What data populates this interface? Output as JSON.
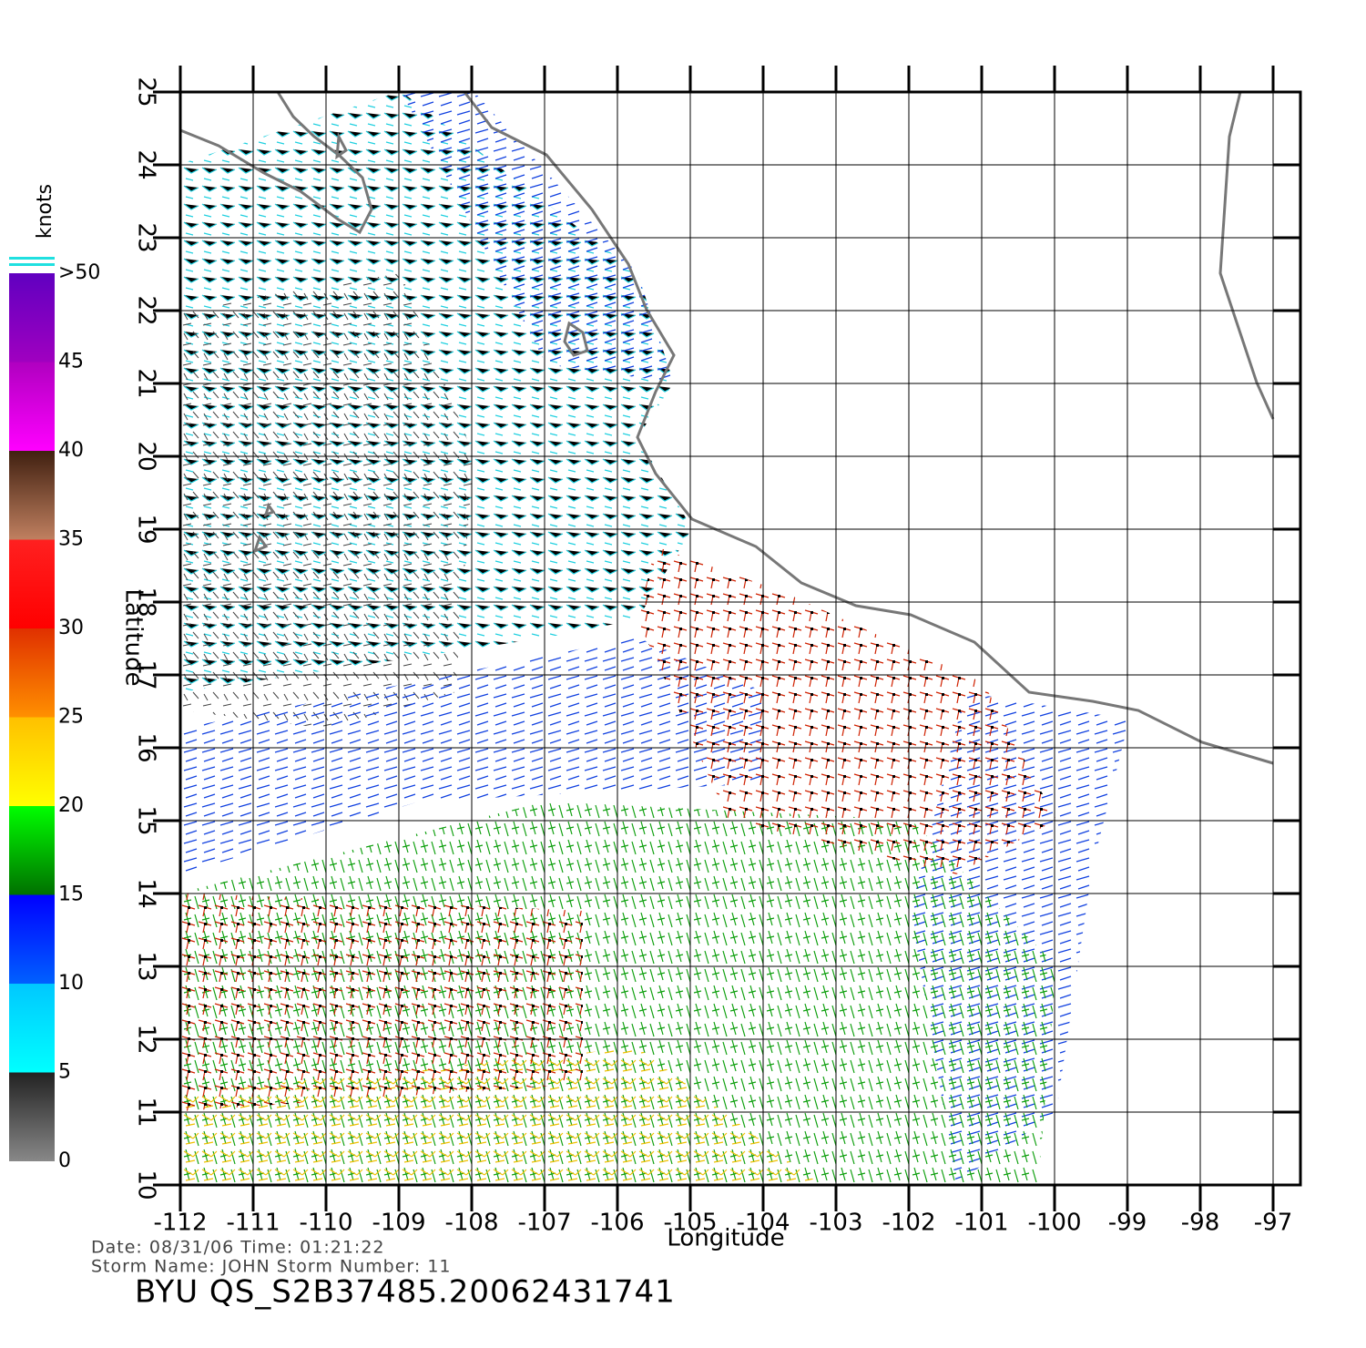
{
  "chart_data": {
    "type": "map",
    "xlabel": "Longitude",
    "ylabel": "Latitude",
    "xlim": [
      -112,
      -96.625
    ],
    "ylim": [
      10,
      25
    ],
    "xticks": [
      -112,
      -111,
      -110,
      -109,
      -108,
      -107,
      -106,
      -105,
      -104,
      -103,
      -102,
      -101,
      -100,
      -99,
      -98,
      -97
    ],
    "yticks": [
      10,
      11,
      12,
      13,
      14,
      15,
      16,
      17,
      18,
      19,
      20,
      21,
      22,
      23,
      24,
      25
    ],
    "grid": true,
    "colorbar": {
      "label": "knots",
      "lim": [
        0,
        50
      ],
      "ticks": [
        0,
        5,
        10,
        15,
        20,
        25,
        30,
        35,
        40,
        45,
        {
          "value": 50,
          "label": ">50"
        }
      ],
      "colors": [
        [
          "#888888",
          "#222222"
        ],
        [
          "#00ffff",
          "#00c8ff"
        ],
        [
          "#0060ff",
          "#0000ff"
        ],
        [
          "#007000",
          "#00ff00"
        ],
        [
          "#ffff00",
          "#ffc000"
        ],
        [
          "#ff9000",
          "#e03000"
        ],
        [
          "#ff0000",
          "#ff2020"
        ],
        [
          "#c08060",
          "#402010"
        ],
        [
          "#ff00ff",
          "#b000c0"
        ],
        [
          "#a000c0",
          "#6000c0"
        ]
      ]
    },
    "annotations": [
      "Date: 08/31/06   Time: 01:21:22",
      "Storm  Name: JOHN   Storm  Number: 11",
      "BYU  QS_S2B37485.20062431741"
    ]
  }
}
